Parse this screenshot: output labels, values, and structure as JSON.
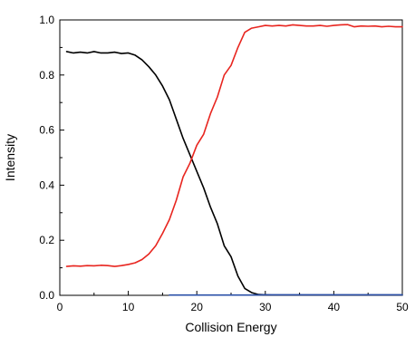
{
  "chart_data": {
    "type": "line",
    "title": "",
    "xlabel": "Collision Energy",
    "ylabel": "Intensity",
    "xlim": [
      0,
      50
    ],
    "ylim": [
      0,
      1.0
    ],
    "x_ticks": [
      0,
      10,
      20,
      30,
      40,
      50
    ],
    "y_ticks": [
      0.0,
      0.2,
      0.4,
      0.6,
      0.8,
      1.0
    ],
    "x_tick_labels": [
      "0",
      "10",
      "20",
      "30",
      "40",
      "50"
    ],
    "y_tick_labels": [
      "0.0",
      "0.2",
      "0.4",
      "0.6",
      "0.8",
      "1.0"
    ],
    "grid": false,
    "legend": "none",
    "series": [
      {
        "color": "#000000",
        "x": [
          1,
          2,
          3,
          4,
          5,
          6,
          7,
          8,
          9,
          10,
          11,
          12,
          13,
          14,
          15,
          16,
          17,
          18,
          19,
          20,
          21,
          22,
          23,
          24,
          25,
          26,
          27,
          28,
          29,
          30,
          31,
          32,
          33,
          34,
          35,
          36,
          37,
          38,
          39,
          40,
          41,
          42,
          43,
          44,
          45,
          46,
          47,
          48,
          49,
          50
        ],
        "y": [
          0.885,
          0.88,
          0.883,
          0.88,
          0.885,
          0.88,
          0.88,
          0.883,
          0.878,
          0.88,
          0.872,
          0.855,
          0.83,
          0.8,
          0.76,
          0.71,
          0.64,
          0.57,
          0.51,
          0.45,
          0.39,
          0.32,
          0.26,
          0.18,
          0.14,
          0.07,
          0.025,
          0.01,
          0.003,
          0.002,
          0.001,
          0.001,
          0.001,
          0.001,
          0.001,
          0.001,
          0.001,
          0.001,
          0.001,
          0.001,
          0.001,
          0.001,
          0.001,
          0.001,
          0.001,
          0.001,
          0.001,
          0.001,
          0.001,
          0.001
        ]
      },
      {
        "color": "#e8251f",
        "x": [
          1,
          2,
          3,
          4,
          5,
          6,
          7,
          8,
          9,
          10,
          11,
          12,
          13,
          14,
          15,
          16,
          17,
          18,
          19,
          20,
          21,
          22,
          23,
          24,
          25,
          26,
          27,
          28,
          29,
          30,
          31,
          32,
          33,
          34,
          35,
          36,
          37,
          38,
          39,
          40,
          41,
          42,
          43,
          44,
          45,
          46,
          47,
          48,
          49,
          50
        ],
        "y": [
          0.105,
          0.107,
          0.106,
          0.108,
          0.107,
          0.109,
          0.108,
          0.105,
          0.108,
          0.112,
          0.118,
          0.13,
          0.15,
          0.18,
          0.225,
          0.275,
          0.345,
          0.43,
          0.48,
          0.545,
          0.585,
          0.66,
          0.72,
          0.8,
          0.835,
          0.9,
          0.955,
          0.97,
          0.975,
          0.98,
          0.978,
          0.98,
          0.978,
          0.982,
          0.98,
          0.978,
          0.978,
          0.98,
          0.977,
          0.98,
          0.982,
          0.983,
          0.975,
          0.978,
          0.977,
          0.978,
          0.975,
          0.977,
          0.975,
          0.975
        ]
      },
      {
        "color": "#2a4fa8",
        "x": [
          16,
          18,
          20,
          22,
          24,
          26,
          28,
          30,
          32,
          34,
          36,
          38,
          40,
          42,
          44,
          46,
          48,
          50
        ],
        "y": [
          0.001,
          0.001,
          0.001,
          0.001,
          0.001,
          0.001,
          0.001,
          0.002,
          0.002,
          0.002,
          0.002,
          0.002,
          0.002,
          0.002,
          0.002,
          0.002,
          0.002,
          0.002
        ]
      }
    ]
  }
}
